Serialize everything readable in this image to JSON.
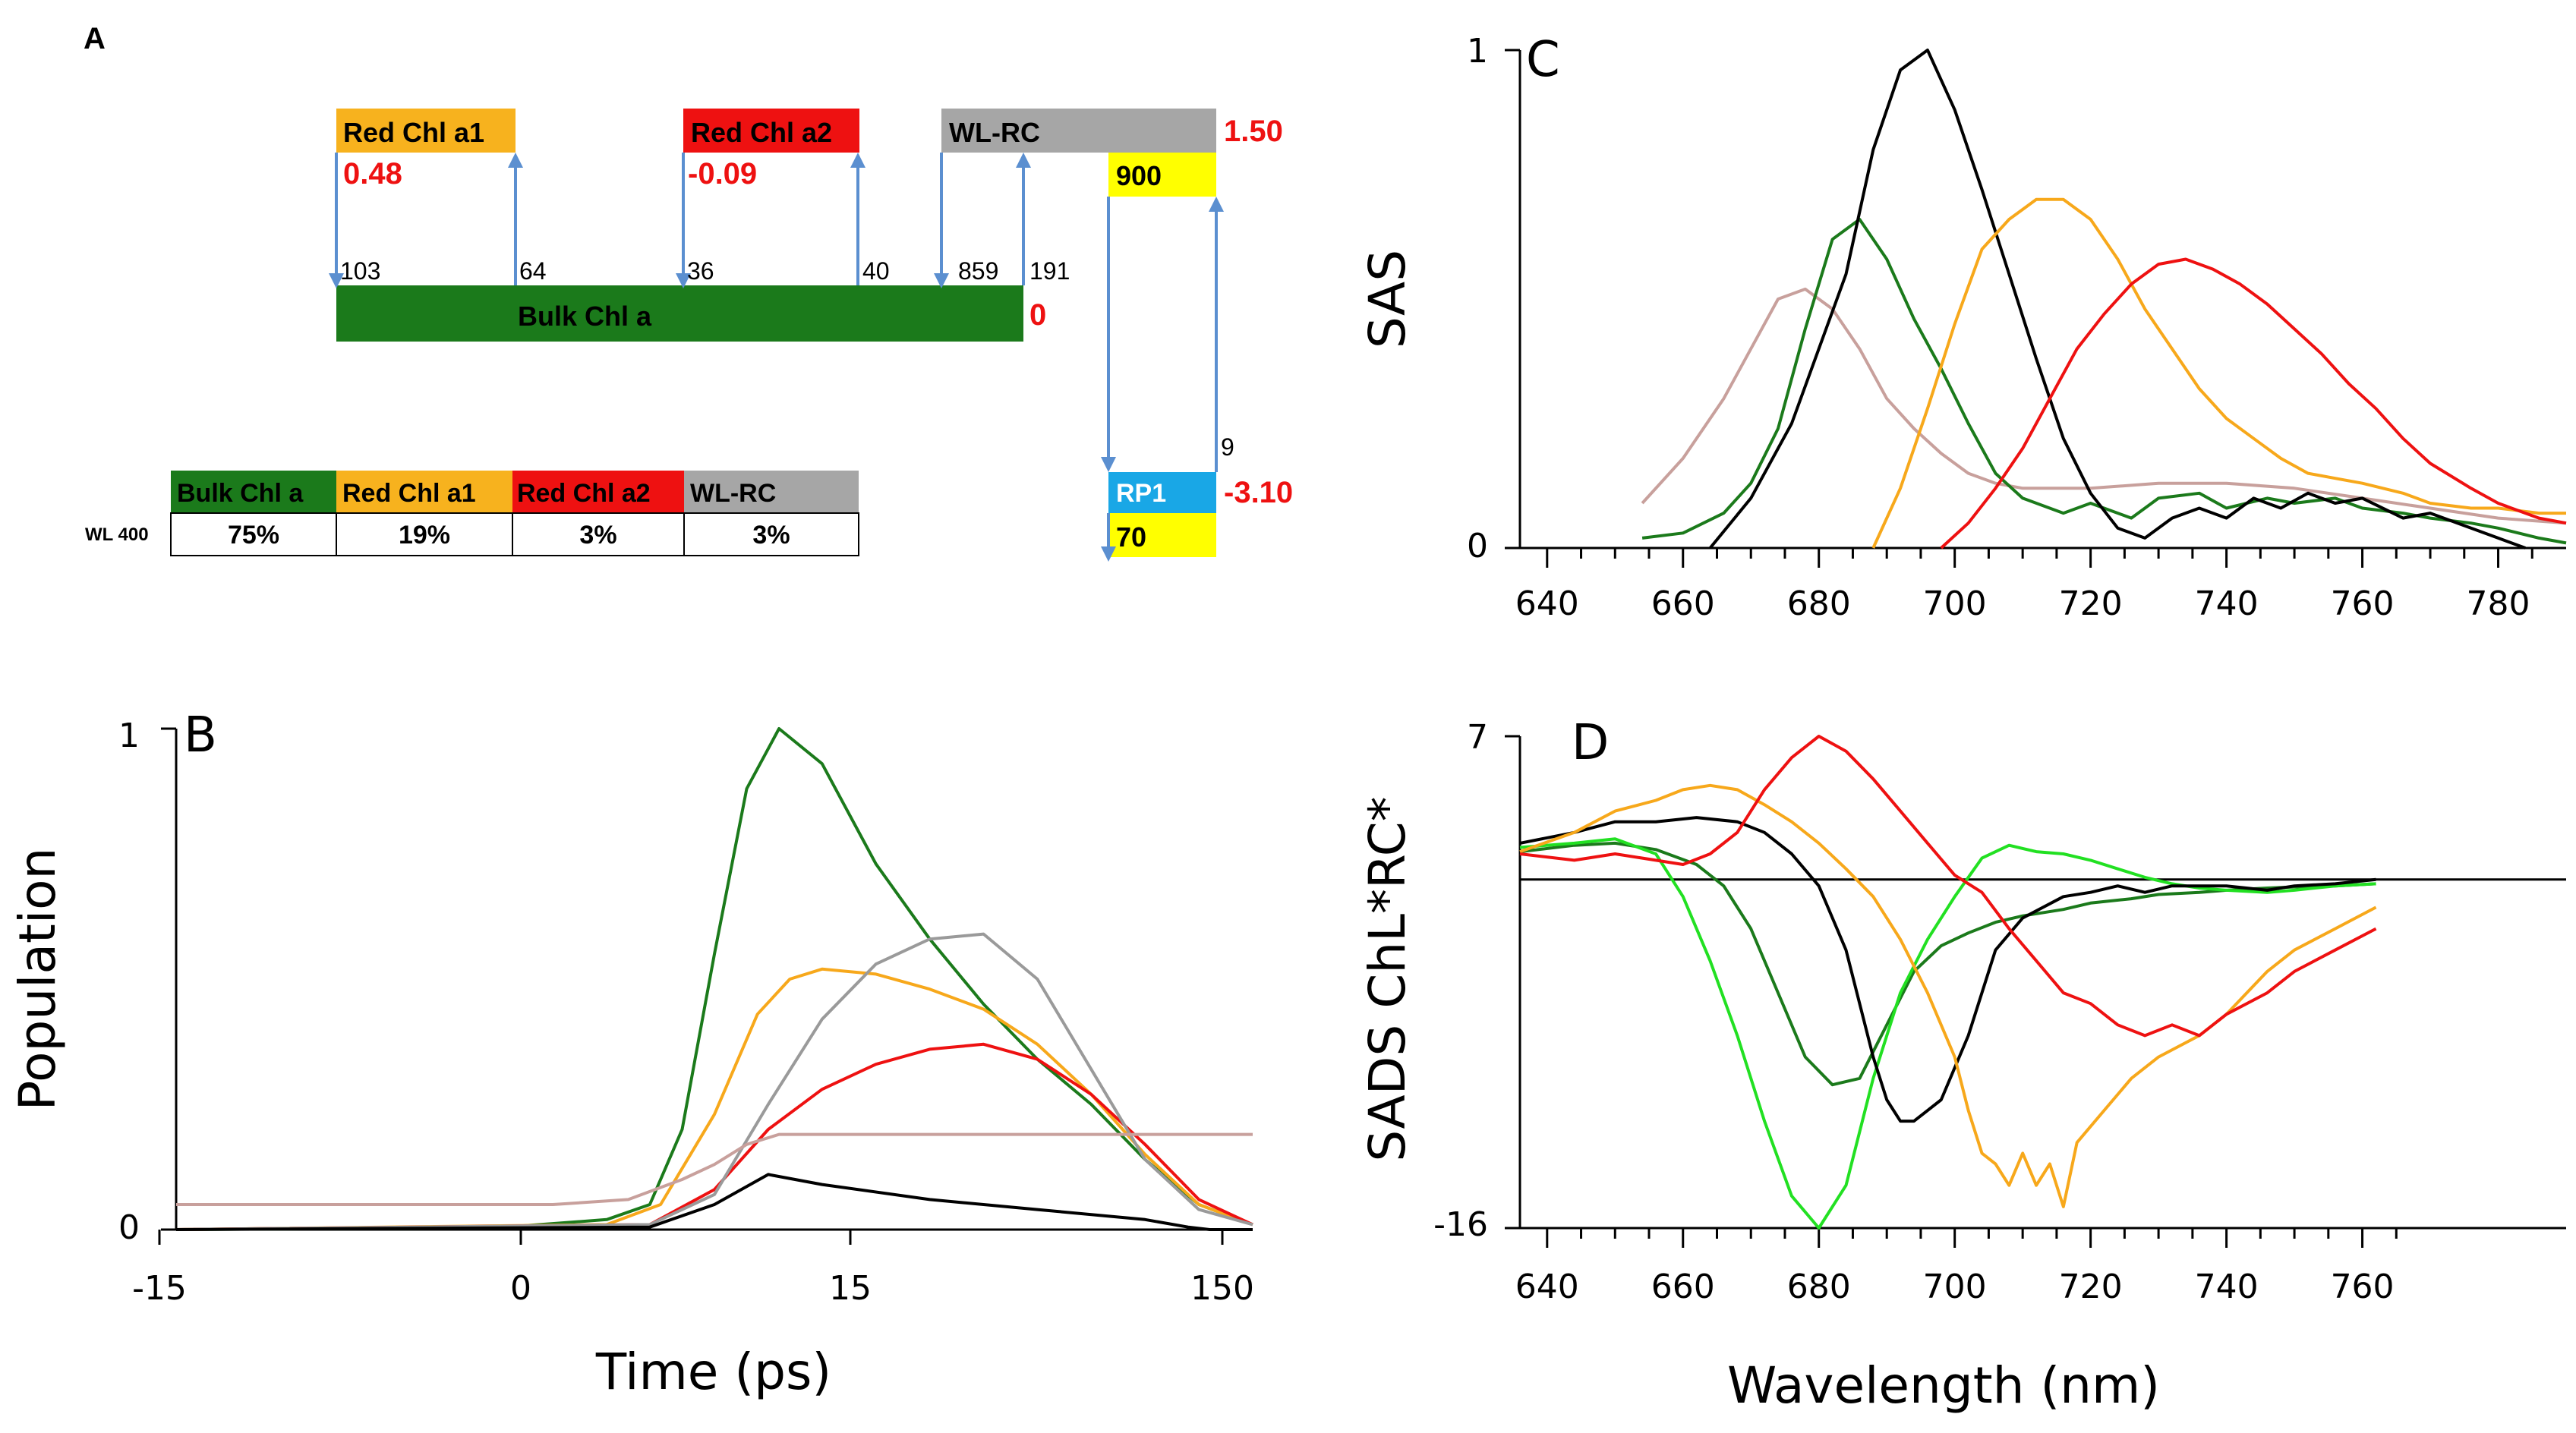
{
  "panel_letters": {
    "a": "A",
    "b": "B",
    "c": "C",
    "d": "D"
  },
  "colors": {
    "bulk": "#1b7a1b",
    "red1": "#f7b21e",
    "red2": "#ee1111",
    "wlrc": "#a6a6a6",
    "rp1": "#19a7e6",
    "yellow": "#ffff00",
    "accent_red": "#ee1111",
    "arrow": "#5b8fd0",
    "black": "#000000",
    "orange": "#f7a81b",
    "gray": "#9a9a9a",
    "pink": "#c8a09c",
    "lime": "#22e022"
  },
  "scheme": {
    "boxes": {
      "red1": "Red Chl a1",
      "red2": "Red Chl a2",
      "wlrc": "WL-RC",
      "bulk": "Bulk Chl a",
      "rp1": "RP1",
      "wlrc_value": "900",
      "rp1_value": "70"
    },
    "energies": {
      "red1": "0.48",
      "red2": "-0.09",
      "wlrc": "1.50",
      "bulk": "0",
      "rp1": "-3.10"
    },
    "rates": {
      "r103": "103",
      "r64": "64",
      "r36": "36",
      "r40": "40",
      "r859": "859",
      "r191": "191",
      "r9": "9"
    }
  },
  "table": {
    "headers": [
      "Bulk Chl a",
      "Red Chl a1",
      "Red Chl a2",
      "WL-RC"
    ],
    "row_label": "WL 400",
    "values": [
      "75%",
      "19%",
      "3%",
      "3%"
    ]
  },
  "chart_data": [
    {
      "id": "B",
      "type": "line",
      "title": "B",
      "xlabel": "Time (ps)",
      "ylabel": "Population",
      "x_ticks": [
        "-15",
        "0",
        "15",
        "150"
      ],
      "y_ticks": [
        "0",
        "1"
      ],
      "ylim": [
        0,
        1
      ],
      "note": "x axis: linear from -15 to ~15 ps, logarithmic beyond; x values given as display fraction 0..1 of the axis",
      "series": [
        {
          "name": "Bulk Chl a",
          "color": "#1b7a1b",
          "x": [
            0,
            0.3,
            0.4,
            0.44,
            0.47,
            0.5,
            0.53,
            0.56,
            0.6,
            0.65,
            0.7,
            0.75,
            0.8,
            0.85,
            0.9,
            0.95,
            1.0
          ],
          "y": [
            0,
            0.004,
            0.02,
            0.05,
            0.2,
            0.55,
            0.88,
            1.0,
            0.93,
            0.73,
            0.58,
            0.45,
            0.34,
            0.25,
            0.14,
            0.05,
            0.01
          ]
        },
        {
          "name": "Red Chl a1",
          "color": "#f7a81b",
          "x": [
            0,
            0.4,
            0.45,
            0.5,
            0.54,
            0.57,
            0.6,
            0.65,
            0.7,
            0.75,
            0.8,
            0.85,
            0.9,
            0.95,
            1.0
          ],
          "y": [
            0,
            0.01,
            0.05,
            0.23,
            0.43,
            0.5,
            0.52,
            0.51,
            0.48,
            0.44,
            0.37,
            0.27,
            0.15,
            0.05,
            0.01
          ]
        },
        {
          "name": "Red Chl a2",
          "color": "#ee1111",
          "x": [
            0,
            0.44,
            0.5,
            0.55,
            0.6,
            0.65,
            0.7,
            0.75,
            0.8,
            0.85,
            0.9,
            0.95,
            1.0
          ],
          "y": [
            0,
            0.01,
            0.08,
            0.2,
            0.28,
            0.33,
            0.36,
            0.37,
            0.34,
            0.27,
            0.17,
            0.06,
            0.01
          ]
        },
        {
          "name": "WL-RC",
          "color": "#9a9a9a",
          "x": [
            0,
            0.44,
            0.5,
            0.55,
            0.6,
            0.65,
            0.7,
            0.75,
            0.8,
            0.85,
            0.9,
            0.95,
            1.0
          ],
          "y": [
            0,
            0.01,
            0.07,
            0.25,
            0.42,
            0.53,
            0.58,
            0.59,
            0.5,
            0.32,
            0.14,
            0.04,
            0.01
          ]
        },
        {
          "name": "RP1",
          "color": "#c8a09c",
          "x": [
            0,
            0.35,
            0.42,
            0.47,
            0.5,
            0.53,
            0.56,
            1.0
          ],
          "y": [
            0.05,
            0.05,
            0.06,
            0.1,
            0.13,
            0.17,
            0.19,
            0.19
          ]
        },
        {
          "name": "Black",
          "color": "#000000",
          "x": [
            0,
            0.44,
            0.5,
            0.55,
            0.6,
            0.7,
            0.8,
            0.9,
            0.94,
            0.96,
            1.0
          ],
          "y": [
            0,
            0.005,
            0.05,
            0.11,
            0.09,
            0.06,
            0.04,
            0.02,
            0.005,
            0.0,
            0.0
          ]
        }
      ]
    },
    {
      "id": "C",
      "type": "line",
      "title": "C",
      "xlabel": "",
      "ylabel": "SAS",
      "x_ticks": [
        "640",
        "660",
        "680",
        "700",
        "720",
        "740",
        "760",
        "780"
      ],
      "y_ticks": [
        "0",
        "1"
      ],
      "xlim": [
        636,
        790
      ],
      "ylim": [
        0,
        1
      ],
      "series": [
        {
          "name": "Pink",
          "color": "#c8a09c",
          "x": [
            654,
            660,
            666,
            670,
            674,
            678,
            682,
            686,
            690,
            694,
            698,
            702,
            706,
            710,
            720,
            730,
            740,
            750,
            760,
            770,
            780,
            790
          ],
          "y": [
            0.09,
            0.18,
            0.3,
            0.4,
            0.5,
            0.52,
            0.48,
            0.4,
            0.3,
            0.24,
            0.19,
            0.15,
            0.13,
            0.12,
            0.12,
            0.13,
            0.13,
            0.12,
            0.1,
            0.08,
            0.06,
            0.05
          ]
        },
        {
          "name": "Green",
          "color": "#1b7a1b",
          "x": [
            654,
            660,
            666,
            670,
            674,
            678,
            682,
            686,
            690,
            694,
            698,
            702,
            706,
            710,
            716,
            720,
            726,
            730,
            736,
            740,
            746,
            750,
            756,
            760,
            766,
            770,
            776,
            780,
            786,
            790
          ],
          "y": [
            0.02,
            0.03,
            0.07,
            0.13,
            0.24,
            0.44,
            0.62,
            0.66,
            0.58,
            0.46,
            0.36,
            0.25,
            0.15,
            0.1,
            0.07,
            0.09,
            0.06,
            0.1,
            0.11,
            0.08,
            0.1,
            0.09,
            0.1,
            0.08,
            0.07,
            0.06,
            0.05,
            0.04,
            0.02,
            0.01
          ]
        },
        {
          "name": "Black",
          "color": "#000000",
          "x": [
            664,
            670,
            676,
            680,
            684,
            688,
            692,
            696,
            700,
            704,
            708,
            712,
            716,
            720,
            724,
            728,
            732,
            736,
            740,
            744,
            748,
            752,
            756,
            760,
            766,
            770,
            776,
            780,
            784
          ],
          "y": [
            0.0,
            0.1,
            0.25,
            0.4,
            0.55,
            0.8,
            0.96,
            1.0,
            0.88,
            0.72,
            0.55,
            0.38,
            0.22,
            0.11,
            0.04,
            0.02,
            0.06,
            0.08,
            0.06,
            0.1,
            0.08,
            0.11,
            0.09,
            0.1,
            0.06,
            0.07,
            0.04,
            0.02,
            0.0
          ]
        },
        {
          "name": "Orange",
          "color": "#f7a81b",
          "x": [
            688,
            692,
            696,
            700,
            704,
            708,
            712,
            716,
            720,
            724,
            728,
            732,
            736,
            740,
            744,
            748,
            752,
            756,
            760,
            766,
            770,
            776,
            780,
            786,
            790
          ],
          "y": [
            0.0,
            0.12,
            0.28,
            0.45,
            0.6,
            0.66,
            0.7,
            0.7,
            0.66,
            0.58,
            0.48,
            0.4,
            0.32,
            0.26,
            0.22,
            0.18,
            0.15,
            0.14,
            0.13,
            0.11,
            0.09,
            0.08,
            0.08,
            0.07,
            0.07
          ]
        },
        {
          "name": "Red",
          "color": "#ee1111",
          "x": [
            698,
            702,
            706,
            710,
            714,
            718,
            722,
            726,
            730,
            734,
            738,
            742,
            746,
            750,
            754,
            758,
            762,
            766,
            770,
            776,
            780,
            786,
            790
          ],
          "y": [
            0.0,
            0.05,
            0.12,
            0.2,
            0.3,
            0.4,
            0.47,
            0.53,
            0.57,
            0.58,
            0.56,
            0.53,
            0.49,
            0.44,
            0.39,
            0.33,
            0.28,
            0.22,
            0.17,
            0.12,
            0.09,
            0.06,
            0.05
          ]
        }
      ]
    },
    {
      "id": "D",
      "type": "line",
      "title": "D",
      "xlabel": "Wavelength (nm)",
      "ylabel": "SADS ChL*RC*",
      "x_ticks": [
        "640",
        "660",
        "680",
        "700",
        "720",
        "740",
        "760"
      ],
      "y_ticks": [
        "-16",
        "7"
      ],
      "xlim": [
        636,
        790
      ],
      "ylim": [
        -16,
        7
      ],
      "zero_line": 0.3,
      "series": [
        {
          "name": "Dark green",
          "color": "#1b7a1b",
          "x": [
            636,
            644,
            650,
            656,
            662,
            666,
            670,
            674,
            678,
            682,
            686,
            690,
            694,
            698,
            702,
            706,
            710,
            716,
            720,
            726,
            730,
            736,
            740,
            746,
            750,
            756,
            762
          ],
          "y": [
            1.6,
            1.9,
            2.0,
            1.7,
            1.0,
            0.0,
            -2.0,
            -5.0,
            -8.0,
            -9.3,
            -9.0,
            -6.5,
            -4.0,
            -2.8,
            -2.2,
            -1.7,
            -1.4,
            -1.1,
            -0.8,
            -0.6,
            -0.4,
            -0.3,
            -0.2,
            -0.1,
            -0.05,
            0.0,
            0.1
          ]
        },
        {
          "name": "Lime",
          "color": "#22e022",
          "x": [
            636,
            644,
            650,
            656,
            660,
            664,
            668,
            672,
            676,
            680,
            684,
            688,
            692,
            696,
            700,
            704,
            708,
            712,
            716,
            720,
            724,
            728,
            732,
            736,
            740,
            746,
            750,
            756,
            762
          ],
          "y": [
            1.8,
            2.0,
            2.2,
            1.5,
            -0.5,
            -3.5,
            -7.0,
            -11.0,
            -14.5,
            -16.0,
            -14.0,
            -9.0,
            -5.0,
            -2.5,
            -0.5,
            1.3,
            1.9,
            1.6,
            1.5,
            1.2,
            0.8,
            0.4,
            0.1,
            -0.1,
            -0.2,
            -0.3,
            -0.2,
            0.0,
            0.1
          ]
        },
        {
          "name": "Black",
          "color": "#000000",
          "x": [
            636,
            644,
            650,
            656,
            662,
            668,
            672,
            676,
            680,
            684,
            688,
            690,
            692,
            694,
            698,
            702,
            706,
            710,
            716,
            720,
            724,
            728,
            732,
            736,
            740,
            746,
            750,
            756,
            762
          ],
          "y": [
            2.0,
            2.5,
            3.0,
            3.0,
            3.2,
            3.0,
            2.5,
            1.5,
            0.0,
            -3.0,
            -8.0,
            -10.0,
            -11.0,
            -11.0,
            -10.0,
            -7.0,
            -3.0,
            -1.5,
            -0.5,
            -0.3,
            0.0,
            -0.3,
            0.0,
            0.0,
            0.0,
            -0.2,
            0.0,
            0.1,
            0.3
          ]
        },
        {
          "name": "Orange",
          "color": "#f7a81b",
          "x": [
            636,
            644,
            650,
            656,
            660,
            664,
            668,
            672,
            676,
            680,
            684,
            688,
            692,
            696,
            700,
            702,
            704,
            706,
            708,
            710,
            712,
            714,
            716,
            718,
            722,
            726,
            730,
            736,
            740,
            746,
            750,
            756,
            762
          ],
          "y": [
            1.6,
            2.5,
            3.5,
            4.0,
            4.5,
            4.7,
            4.5,
            3.8,
            3.0,
            2.0,
            0.8,
            -0.5,
            -2.5,
            -5.0,
            -8.0,
            -10.5,
            -12.5,
            -13.0,
            -14.0,
            -12.5,
            -14.0,
            -13.0,
            -15.0,
            -12.0,
            -10.5,
            -9.0,
            -8.0,
            -7.0,
            -6.0,
            -4.0,
            -3.0,
            -2.0,
            -1.0
          ]
        },
        {
          "name": "Red",
          "color": "#ee1111",
          "x": [
            636,
            644,
            650,
            656,
            660,
            664,
            668,
            672,
            676,
            680,
            684,
            688,
            692,
            696,
            700,
            704,
            708,
            712,
            716,
            720,
            724,
            728,
            732,
            736,
            740,
            746,
            750,
            756,
            762
          ],
          "y": [
            1.5,
            1.2,
            1.5,
            1.2,
            1.0,
            1.5,
            2.5,
            4.5,
            6.0,
            7.0,
            6.3,
            5.0,
            3.5,
            2.0,
            0.5,
            -0.3,
            -2.0,
            -3.5,
            -5.0,
            -5.5,
            -6.5,
            -7.0,
            -6.5,
            -7.0,
            -6.0,
            -5.0,
            -4.0,
            -3.0,
            -2.0
          ]
        }
      ]
    }
  ]
}
